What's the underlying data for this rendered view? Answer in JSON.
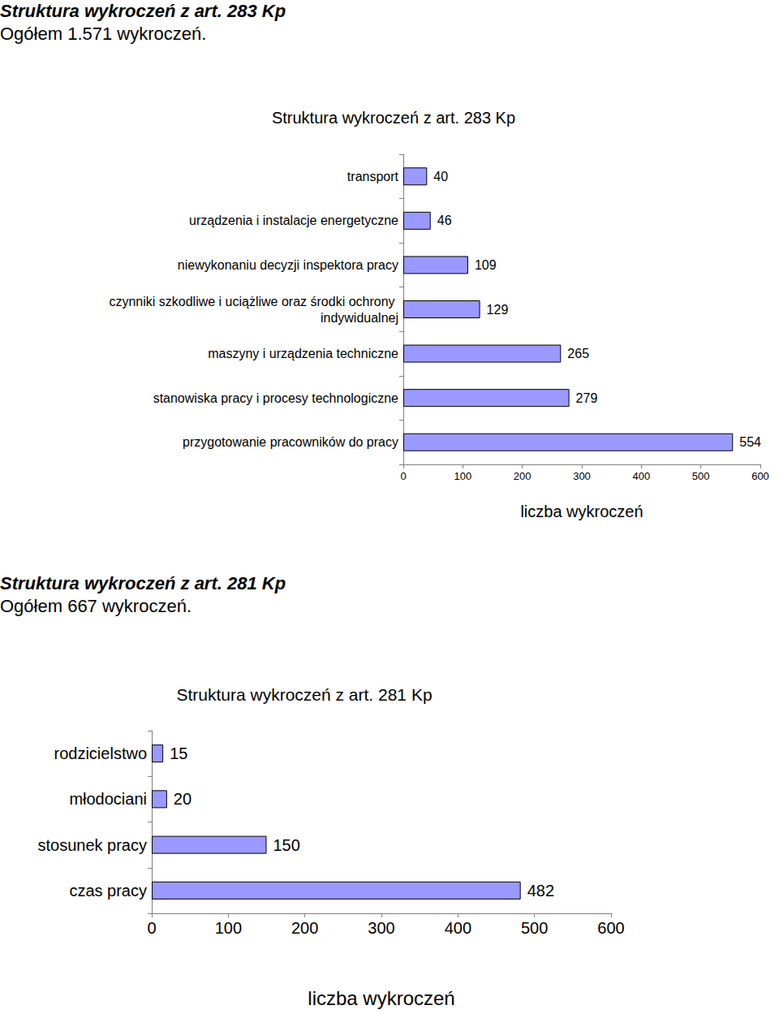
{
  "chart_data": [
    {
      "type": "bar",
      "orientation": "horizontal",
      "annotations": [
        "Struktura wykroczeń z art. 283 Kp",
        "Ogółem 1.571 wykroczeń."
      ],
      "title": "Struktura wykroczeń z art. 283 Kp",
      "categories": [
        "transport",
        "urządzenia i instalacje energetyczne",
        "niewykonaniu decyzji inspektora pracy",
        "czynniki szkodliwe i uciążliwe oraz środki ochrony indywidualnej",
        "maszyny i urządzenia techniczne",
        "stanowiska pracy i procesy technologiczne",
        "przygotowanie pracowników do pracy"
      ],
      "values": [
        40,
        46,
        109,
        129,
        265,
        279,
        554
      ],
      "color": "#9999ff",
      "xlabel": "liczba wykroczeń",
      "xlim": [
        0,
        600
      ],
      "xticks": [
        0,
        100,
        200,
        300,
        400,
        500,
        600
      ],
      "grid": false,
      "data_labels": true
    },
    {
      "type": "bar",
      "orientation": "horizontal",
      "annotations": [
        "Struktura wykroczeń z art. 281 Kp",
        "Ogółem 667 wykroczeń."
      ],
      "title": "Struktura wykroczeń z art. 281 Kp",
      "categories": [
        "rodzicielstwo",
        "młodociani",
        "stosunek pracy",
        "czas pracy"
      ],
      "values": [
        15,
        20,
        150,
        482
      ],
      "color": "#9999ff",
      "xlabel": "liczba wykroczeń",
      "xlim": [
        0,
        600
      ],
      "xticks": [
        0,
        100,
        200,
        300,
        400,
        500,
        600
      ],
      "grid": false,
      "data_labels": true
    }
  ]
}
